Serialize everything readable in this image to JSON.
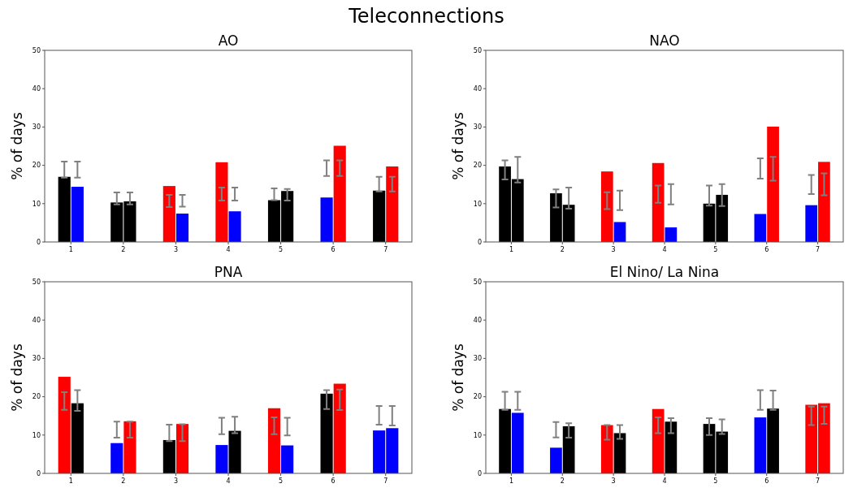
{
  "chart_data": [
    {
      "type": "other",
      "title": "Teleconnections"
    },
    {
      "type": "bar",
      "title": "AO",
      "ylabel": "% of days",
      "categories": [
        "1",
        "2",
        "3",
        "4",
        "5",
        "6",
        "7"
      ],
      "ylim": [
        0,
        50
      ],
      "yticks": [
        0,
        10,
        20,
        30,
        40,
        50
      ],
      "grid": false,
      "series": [
        {
          "colors": [
            "#000000",
            "#000000",
            "#ff0000",
            "#ff0000",
            "#000000",
            "#0000ff",
            "#000000"
          ],
          "values": [
            17.0,
            10.3,
            14.6,
            20.8,
            10.9,
            11.6,
            13.4
          ],
          "errors": [
            [
              16.8,
              21.0
            ],
            [
              9.8,
              12.9
            ],
            [
              9.1,
              12.3
            ],
            [
              10.8,
              14.2
            ],
            [
              10.9,
              14.0
            ],
            [
              17.2,
              21.3
            ],
            [
              13.2,
              17.0
            ]
          ]
        },
        {
          "colors": [
            "#0000ff",
            "#000000",
            "#0000ff",
            "#0000ff",
            "#000000",
            "#ff0000",
            "#ff0000"
          ],
          "values": [
            14.4,
            10.6,
            7.4,
            8.0,
            13.3,
            25.1,
            19.7
          ],
          "errors": [
            [
              16.8,
              21.0
            ],
            [
              9.8,
              12.9
            ],
            [
              9.2,
              12.3
            ],
            [
              10.8,
              14.2
            ],
            [
              10.8,
              13.8
            ],
            [
              17.2,
              21.3
            ],
            [
              13.2,
              17.0
            ]
          ]
        }
      ]
    },
    {
      "type": "bar",
      "title": "NAO",
      "ylabel": "% of days",
      "categories": [
        "1",
        "2",
        "3",
        "4",
        "5",
        "6",
        "7"
      ],
      "ylim": [
        0,
        50
      ],
      "yticks": [
        0,
        10,
        20,
        30,
        40,
        50
      ],
      "grid": false,
      "series": [
        {
          "colors": [
            "#000000",
            "#000000",
            "#ff0000",
            "#ff0000",
            "#000000",
            "#0000ff",
            "#0000ff"
          ],
          "values": [
            19.7,
            12.7,
            18.4,
            20.6,
            10.0,
            7.3,
            9.6
          ],
          "errors": [
            [
              16.3,
              21.3
            ],
            [
              9.0,
              13.7
            ],
            [
              8.6,
              13.0
            ],
            [
              10.2,
              14.7
            ],
            [
              9.5,
              14.7
            ],
            [
              16.5,
              21.8
            ],
            [
              12.5,
              17.5
            ]
          ]
        },
        {
          "colors": [
            "#000000",
            "#000000",
            "#0000ff",
            "#0000ff",
            "#000000",
            "#ff0000",
            "#ff0000"
          ],
          "values": [
            16.4,
            9.7,
            5.2,
            3.8,
            12.3,
            30.1,
            20.9
          ],
          "errors": [
            [
              15.5,
              22.2
            ],
            [
              8.7,
              14.2
            ],
            [
              8.3,
              13.4
            ],
            [
              9.8,
              15.1
            ],
            [
              9.4,
              15.1
            ],
            [
              16.0,
              22.2
            ],
            [
              12.2,
              17.9
            ]
          ]
        }
      ]
    },
    {
      "type": "bar",
      "title": "PNA",
      "ylabel": "% of days",
      "categories": [
        "1",
        "2",
        "3",
        "4",
        "5",
        "6",
        "7"
      ],
      "ylim": [
        0,
        50
      ],
      "yticks": [
        0,
        10,
        20,
        30,
        40,
        50
      ],
      "grid": false,
      "series": [
        {
          "colors": [
            "#ff0000",
            "#0000ff",
            "#000000",
            "#0000ff",
            "#ff0000",
            "#000000",
            "#0000ff"
          ],
          "values": [
            25.2,
            7.9,
            8.7,
            7.4,
            17.0,
            20.8,
            11.2
          ],
          "errors": [
            [
              16.6,
              21.2
            ],
            [
              9.3,
              13.5
            ],
            [
              8.4,
              12.7
            ],
            [
              10.2,
              14.5
            ],
            [
              10.2,
              14.6
            ],
            [
              16.8,
              21.7
            ],
            [
              12.7,
              17.6
            ]
          ]
        },
        {
          "colors": [
            "#000000",
            "#ff0000",
            "#ff0000",
            "#000000",
            "#0000ff",
            "#ff0000",
            "#0000ff"
          ],
          "values": [
            18.3,
            13.6,
            12.9,
            11.1,
            7.3,
            23.4,
            11.8
          ],
          "errors": [
            [
              16.3,
              21.7
            ],
            [
              9.3,
              13.5
            ],
            [
              8.4,
              12.8
            ],
            [
              10.5,
              14.8
            ],
            [
              9.9,
              14.5
            ],
            [
              16.5,
              21.9
            ],
            [
              12.5,
              17.6
            ]
          ]
        }
      ]
    },
    {
      "type": "bar",
      "title": "El Nino/ La Nina",
      "ylabel": "% of days",
      "categories": [
        "1",
        "2",
        "3",
        "4",
        "5",
        "6",
        "7"
      ],
      "ylim": [
        0,
        50
      ],
      "yticks": [
        0,
        10,
        20,
        30,
        40,
        50
      ],
      "grid": false,
      "series": [
        {
          "colors": [
            "#000000",
            "#0000ff",
            "#ff0000",
            "#ff0000",
            "#000000",
            "#0000ff",
            "#ff0000"
          ],
          "values": [
            16.8,
            6.7,
            12.6,
            16.8,
            12.9,
            14.6,
            17.9
          ],
          "errors": [
            [
              16.6,
              21.3
            ],
            [
              9.4,
              13.4
            ],
            [
              8.8,
              12.6
            ],
            [
              10.5,
              14.6
            ],
            [
              10.0,
              14.4
            ],
            [
              16.6,
              21.7
            ],
            [
              12.6,
              17.4
            ]
          ]
        },
        {
          "colors": [
            "#0000ff",
            "#000000",
            "#000000",
            "#000000",
            "#000000",
            "#000000",
            "#ff0000"
          ],
          "values": [
            15.8,
            12.3,
            10.5,
            13.5,
            10.9,
            16.9,
            18.3
          ],
          "errors": [
            [
              16.6,
              21.3
            ],
            [
              9.3,
              13.1
            ],
            [
              9.0,
              12.6
            ],
            [
              10.5,
              14.4
            ],
            [
              10.3,
              14.1
            ],
            [
              16.6,
              21.6
            ],
            [
              12.9,
              17.4
            ]
          ]
        }
      ]
    }
  ]
}
